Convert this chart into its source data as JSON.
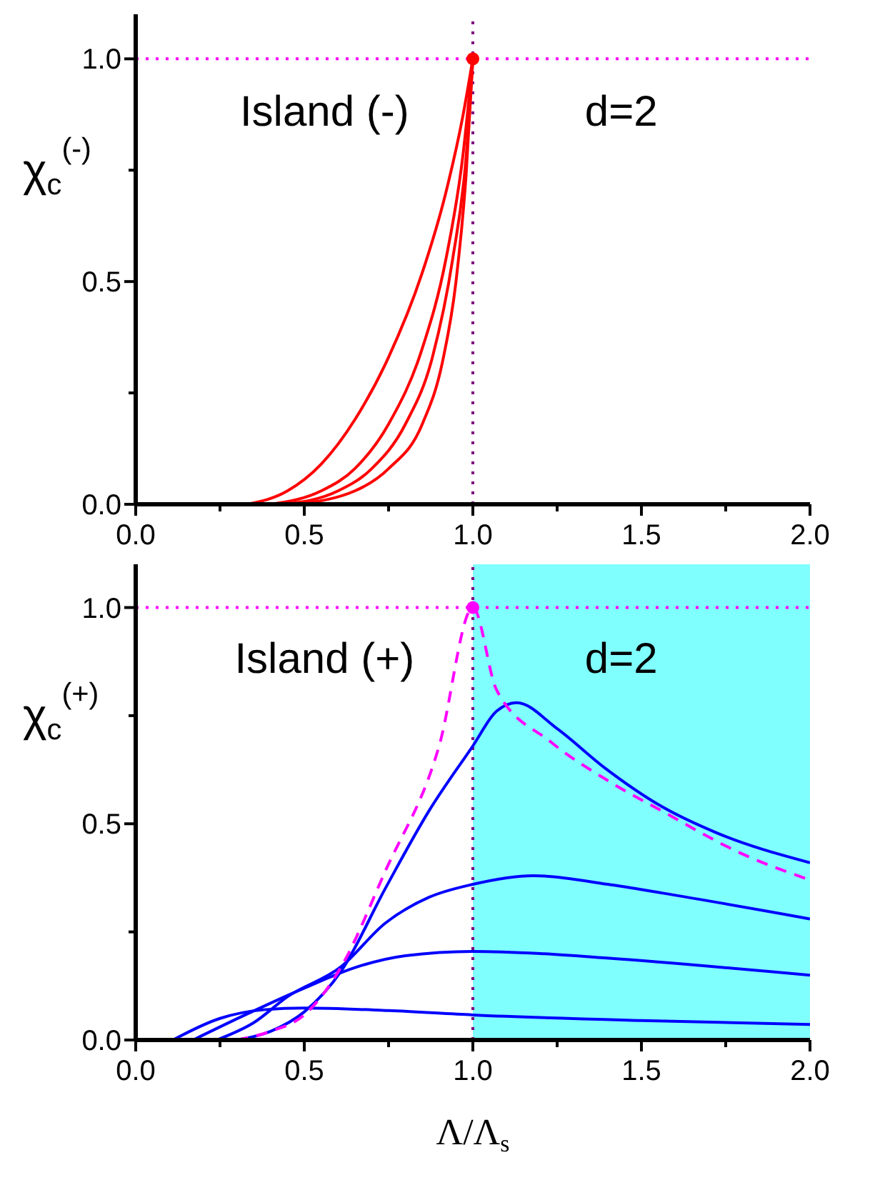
{
  "chart_data": [
    {
      "type": "line",
      "ylabel": "χ$_{c}$$^{(-)}$",
      "annotations": [
        "Island (-)",
        "d=2"
      ],
      "marker": "none",
      "xlim": [
        0,
        2
      ],
      "xticks": [
        {
          "value": 0,
          "label": "0.0"
        },
        {
          "value": 0.25,
          "label": null
        },
        {
          "value": 0.5,
          "label": "0.5"
        },
        {
          "value": 0.75,
          "label": null
        },
        {
          "value": 1,
          "label": "1.0"
        },
        {
          "value": 1.25,
          "label": null
        },
        {
          "value": 1.5,
          "label": "1.5"
        },
        {
          "value": 1.75,
          "label": null
        },
        {
          "value": 2,
          "label": "2.0"
        }
      ],
      "ylim": [
        0,
        1.1
      ],
      "yticks": [
        {
          "value": 0,
          "label": "0.0"
        },
        {
          "value": 0.25,
          "label": null
        },
        {
          "value": 0.5,
          "label": "0.5"
        },
        {
          "value": 0.75,
          "label": null
        },
        {
          "value": 1,
          "label": "1.0"
        }
      ],
      "ref_lines": [
        {
          "axis": "y",
          "value": 1,
          "color": "#ff00ff",
          "line_style": "dotted"
        },
        {
          "axis": "x",
          "value": 1,
          "color": "#800080",
          "line_style": "dotted"
        }
      ],
      "series": [
        {
          "color": "#ff0000",
          "x": [
            0.33,
            0.45,
            0.55,
            0.65,
            0.75,
            0.85,
            0.92,
            0.97,
            1
          ],
          "values": [
            0,
            0.03,
            0.09,
            0.19,
            0.33,
            0.52,
            0.7,
            0.87,
            1
          ]
        },
        {
          "color": "#ff0000",
          "x": [
            0.4,
            0.55,
            0.65,
            0.75,
            0.85,
            0.92,
            0.97,
            1
          ],
          "values": [
            0,
            0.03,
            0.08,
            0.18,
            0.35,
            0.55,
            0.78,
            1
          ]
        },
        {
          "color": "#ff0000",
          "x": [
            0.44,
            0.6,
            0.7,
            0.8,
            0.88,
            0.94,
            0.98,
            1
          ],
          "values": [
            0,
            0.03,
            0.08,
            0.18,
            0.33,
            0.55,
            0.78,
            1
          ]
        },
        {
          "color": "#ff0000",
          "x": [
            0.47,
            0.65,
            0.75,
            0.85,
            0.91,
            0.95,
            0.98,
            1
          ],
          "values": [
            0,
            0.03,
            0.08,
            0.18,
            0.32,
            0.5,
            0.74,
            1
          ]
        },
        {
          "type": "scatter",
          "marker": "circle",
          "color": "#ff0000",
          "x": [
            1
          ],
          "values": [
            1
          ]
        }
      ]
    },
    {
      "type": "line",
      "xlabel": "Λ/Λ$_{s}$",
      "ylabel": "χ$_{c}$$^{(+)}$",
      "annotations": [
        "Island (+)",
        "d=2"
      ],
      "marker": "none",
      "xlim": [
        0,
        2
      ],
      "xticks": [
        {
          "value": 0,
          "label": "0.0"
        },
        {
          "value": 0.25,
          "label": null
        },
        {
          "value": 0.5,
          "label": "0.5"
        },
        {
          "value": 0.75,
          "label": null
        },
        {
          "value": 1,
          "label": "1.0"
        },
        {
          "value": 1.25,
          "label": null
        },
        {
          "value": 1.5,
          "label": "1.5"
        },
        {
          "value": 1.75,
          "label": null
        },
        {
          "value": 2,
          "label": "2.0"
        }
      ],
      "ylim": [
        0,
        1.1
      ],
      "yticks": [
        {
          "value": 0,
          "label": "0.0"
        },
        {
          "value": 0.25,
          "label": null
        },
        {
          "value": 0.5,
          "label": "0.5"
        },
        {
          "value": 0.75,
          "label": null
        },
        {
          "value": 1,
          "label": "1.0"
        }
      ],
      "bands": [
        {
          "axis": "x",
          "from": 1,
          "to": 2,
          "color": "#80ffff"
        }
      ],
      "ref_lines": [
        {
          "axis": "y",
          "value": 1,
          "color": "#ff00ff",
          "line_style": "dotted"
        },
        {
          "axis": "x",
          "value": 1,
          "color": "#800080",
          "line_style": "dotted"
        }
      ],
      "series": [
        {
          "color": "#0000ff",
          "x": [
            0.3,
            0.4,
            0.5,
            0.61,
            0.74,
            0.87,
            1,
            1.07,
            1.13,
            1.25,
            1.39,
            1.56,
            1.72,
            2
          ],
          "values": [
            0,
            0.02,
            0.065,
            0.16,
            0.35,
            0.53,
            0.68,
            0.76,
            0.78,
            0.72,
            0.63,
            0.54,
            0.48,
            0.41
          ]
        },
        {
          "color": "#0000ff",
          "x": [
            0.24,
            0.35,
            0.45,
            0.61,
            0.74,
            0.87,
            1,
            1.18,
            1.4,
            1.56,
            2
          ],
          "values": [
            0,
            0.04,
            0.1,
            0.17,
            0.27,
            0.33,
            0.36,
            0.38,
            0.36,
            0.34,
            0.28
          ]
        },
        {
          "color": "#0000ff",
          "x": [
            0.17,
            0.33,
            0.5,
            0.66,
            0.8,
            1,
            1.2,
            1.39,
            2
          ],
          "values": [
            0,
            0.06,
            0.12,
            0.17,
            0.195,
            0.205,
            0.2,
            0.19,
            0.15
          ]
        },
        {
          "color": "#0000ff",
          "x": [
            0.11,
            0.25,
            0.38,
            0.5,
            0.75,
            1,
            1.5,
            2
          ],
          "values": [
            0,
            0.05,
            0.07,
            0.074,
            0.068,
            0.058,
            0.045,
            0.036
          ]
        },
        {
          "color": "#ff00ff",
          "line_style": "dashed",
          "x": [
            0.3,
            0.4,
            0.5,
            0.61,
            0.74,
            0.9,
            1,
            1.07,
            1.23,
            1.4,
            1.56,
            1.8,
            2
          ],
          "values": [
            0,
            0.02,
            0.058,
            0.17,
            0.39,
            0.68,
            1,
            0.81,
            0.69,
            0.6,
            0.53,
            0.43,
            0.37
          ]
        },
        {
          "type": "scatter",
          "marker": "circle",
          "color": "#ff00ff",
          "x": [
            1
          ],
          "values": [
            1
          ]
        }
      ]
    }
  ]
}
